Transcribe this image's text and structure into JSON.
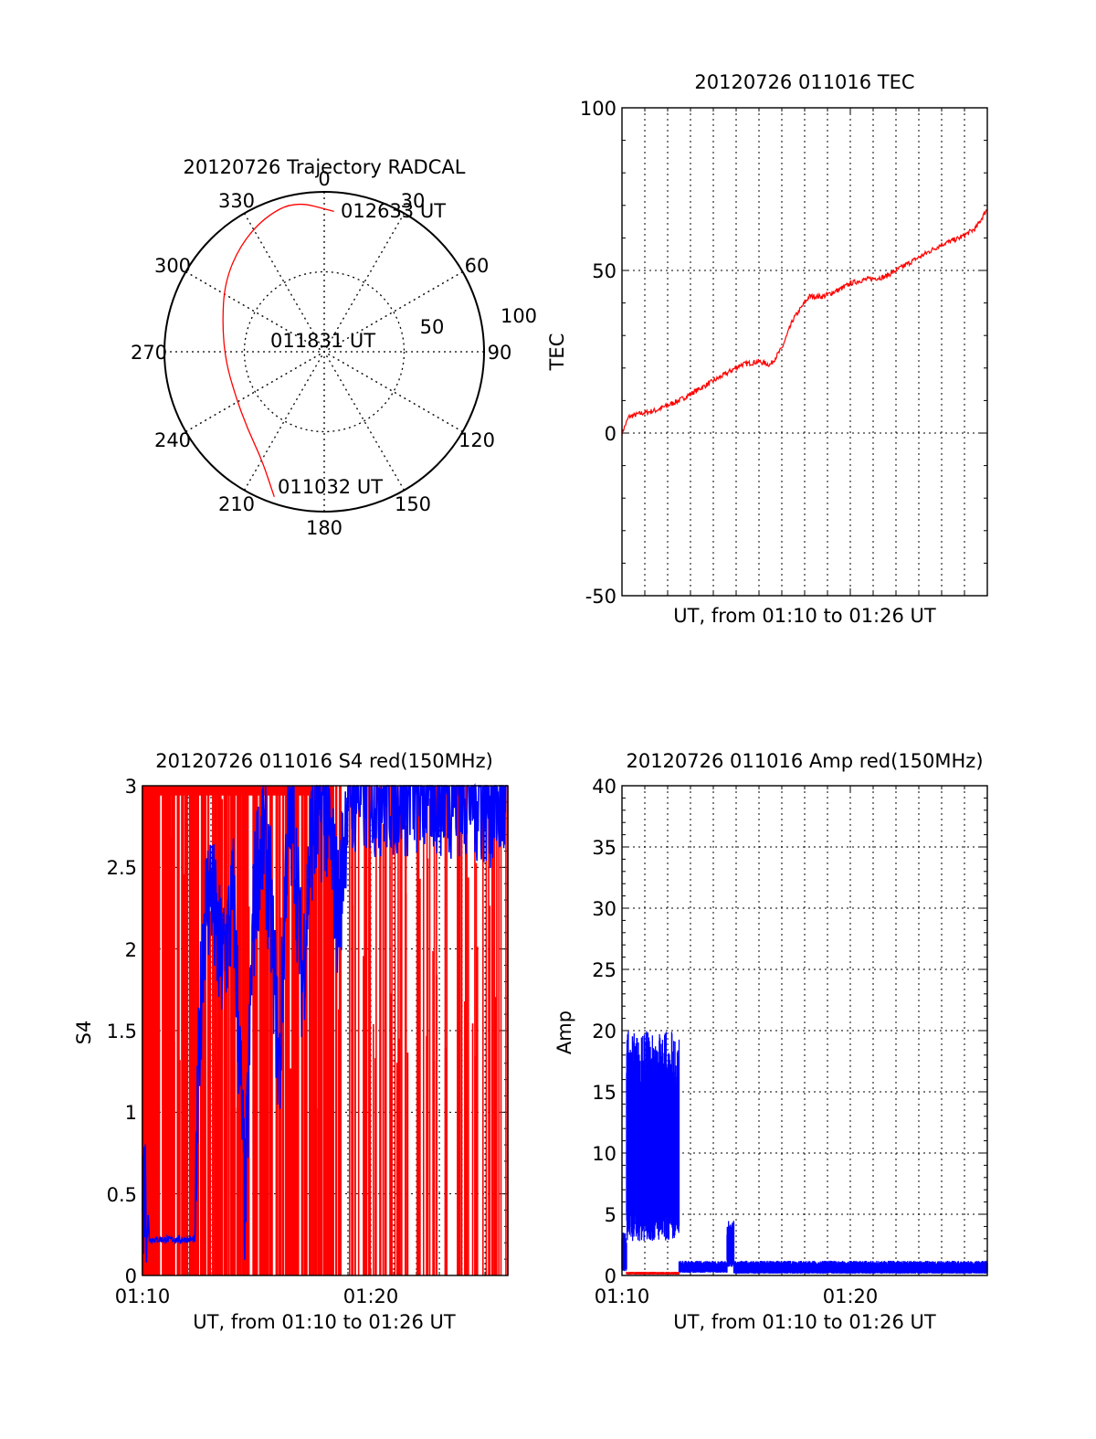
{
  "colors": {
    "red": "#ff0000",
    "blue": "#0000ff",
    "axis": "#000000",
    "grid": "#000000"
  },
  "chart_data": [
    {
      "id": "trajectory",
      "type": "polar",
      "title": "20120726 Trajectory RADCAL",
      "angle_labels": [
        "0",
        "30",
        "60",
        "90",
        "120",
        "150",
        "180",
        "210",
        "240",
        "270",
        "300",
        "330"
      ],
      "radial_labels": [
        "50",
        "100"
      ],
      "elevation_range": [
        0,
        100
      ],
      "annotations": [
        "011032 UT",
        "011831 UT",
        "012633 UT"
      ],
      "track": {
        "color": "red",
        "points": [
          {
            "azimuth": 199,
            "radius": 96
          },
          {
            "azimuth": 210,
            "radius": 78
          },
          {
            "azimuth": 225,
            "radius": 68
          },
          {
            "azimuth": 244,
            "radius": 62
          },
          {
            "azimuth": 265,
            "radius": 62
          },
          {
            "azimuth": 285,
            "radius": 66
          },
          {
            "azimuth": 305,
            "radius": 76
          },
          {
            "azimuth": 322,
            "radius": 85
          },
          {
            "azimuth": 336,
            "radius": 92
          },
          {
            "azimuth": 349,
            "radius": 96
          },
          {
            "azimuth": 4,
            "radius": 88
          }
        ]
      },
      "grid": "dotted"
    },
    {
      "id": "tec",
      "type": "line",
      "title": "20120726 011016 TEC",
      "xlabel": "UT, from 01:10 to 01:26 UT",
      "ylabel": "TEC",
      "ylim": [
        -50,
        100
      ],
      "yticks": [
        "100",
        "50",
        "0",
        "-50"
      ],
      "xlim_minutes": [
        0,
        16
      ],
      "grid": "dotted",
      "series": [
        {
          "color": "red",
          "x": [
            0,
            0.3,
            0.8,
            1.5,
            2.5,
            3.5,
            4.5,
            5.2,
            6.0,
            6.5,
            7.0,
            7.5,
            8.2,
            8.8,
            9.5,
            10.0,
            10.5,
            11.5,
            12.0,
            13.0,
            14.0,
            14.8,
            15.5,
            16.0
          ],
          "y": [
            0,
            5,
            6,
            7,
            10,
            14,
            18,
            21,
            22,
            21,
            26,
            35,
            42,
            42,
            44,
            46,
            47,
            48,
            50,
            54,
            58,
            60,
            63,
            69
          ]
        }
      ]
    },
    {
      "id": "s4",
      "type": "line",
      "title": "20120726 011016 S4 red(150MHz)",
      "xlabel": "UT, from 01:10 to 01:26 UT",
      "ylabel": "S4",
      "ylim": [
        0,
        3
      ],
      "yticks": [
        "3",
        "2.5",
        "2",
        "1.5",
        "1",
        "0.5",
        "0"
      ],
      "xticks": [
        "01:10",
        "01:20"
      ],
      "xtick_minutes": [
        0,
        10
      ],
      "xlim_minutes": [
        0,
        16
      ],
      "grid": "dotted",
      "series": [
        {
          "color": "red",
          "note_spikes": "dense vertical spikes between 0 and 3, densest from 01:10 to 01:18"
        },
        {
          "color": "blue",
          "x": [
            0,
            0.2,
            0.3,
            1.0,
            2.3,
            2.5,
            2.7,
            3.0,
            3.3,
            3.5,
            4.0,
            4.5,
            4.8,
            5.0,
            5.3,
            5.6,
            6.0,
            6.3,
            6.6,
            7.0,
            7.4,
            8.0,
            8.6,
            9.0,
            10.0,
            12.0,
            14.0,
            16.0
          ],
          "y": [
            0.55,
            0.5,
            0.22,
            0.22,
            0.22,
            1.5,
            2.2,
            2.4,
            2.0,
            1.9,
            2.3,
            0.4,
            2.0,
            2.5,
            2.7,
            2.3,
            1.2,
            2.6,
            2.8,
            1.8,
            2.7,
            2.9,
            2.2,
            3.0,
            3.0,
            3.0,
            3.0,
            2.9
          ]
        }
      ]
    },
    {
      "id": "amp",
      "type": "line",
      "title": "20120726 011016 Amp red(150MHz)",
      "xlabel": "UT, from 01:10 to 01:26 UT",
      "ylabel": "Amp",
      "ylim": [
        0,
        40
      ],
      "yticks": [
        "40",
        "35",
        "30",
        "25",
        "20",
        "15",
        "10",
        "5",
        "0"
      ],
      "xticks": [
        "01:10",
        "01:20"
      ],
      "xtick_minutes": [
        0,
        10
      ],
      "xlim_minutes": [
        0,
        16
      ],
      "grid": "dotted",
      "series": [
        {
          "color": "blue",
          "segments": [
            {
              "x_range": [
                0,
                0.2
              ],
              "low": 0.5,
              "high": 3.5
            },
            {
              "x_range": [
                0.2,
                2.5
              ],
              "low": 4,
              "high": 20
            },
            {
              "x_range": [
                2.5,
                4.6
              ],
              "low": 0.3,
              "high": 1.2
            },
            {
              "x_range": [
                4.6,
                4.9
              ],
              "low": 1,
              "high": 4.5
            },
            {
              "x_range": [
                4.9,
                16
              ],
              "low": 0.2,
              "high": 1.2
            }
          ]
        },
        {
          "color": "red",
          "segments": [
            {
              "x_range": [
                0.2,
                2.5
              ],
              "low": 0.1,
              "high": 0.3
            }
          ]
        }
      ]
    }
  ]
}
